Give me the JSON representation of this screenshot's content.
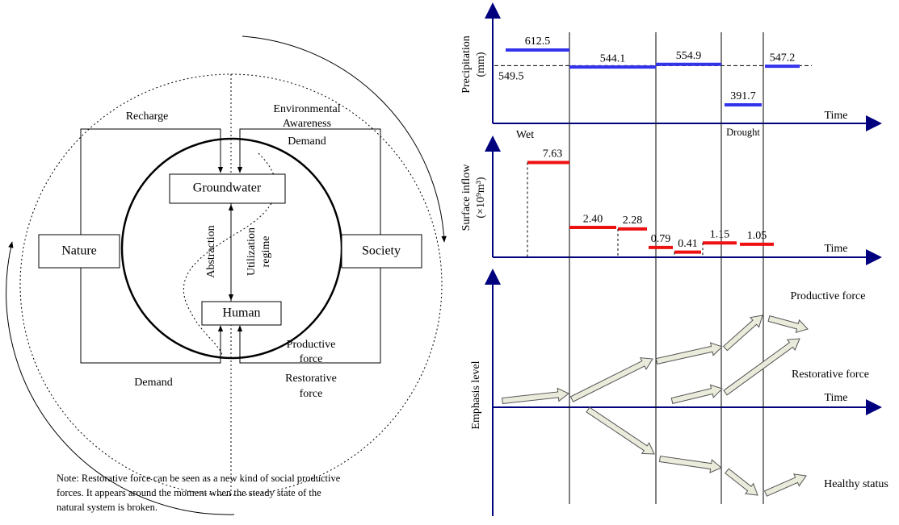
{
  "left": {
    "recharge": "Recharge",
    "awareness": [
      "Environmental",
      "Awareness"
    ],
    "demand_top": "Demand",
    "groundwater": "Groundwater",
    "nature": "Nature",
    "society": "Society",
    "abstraction": "Abstraction",
    "utilization": [
      "Utilization",
      "regime"
    ],
    "human": "Human",
    "productive": [
      "Productive",
      "force"
    ],
    "demand_bottom": "Demand",
    "restorative": [
      "Restorative",
      "force"
    ],
    "note": [
      "Note: Restorative force can be seen as a new kind of social productive",
      "forces. It appears around the moment when the steady state of the",
      "natural system is broken."
    ]
  },
  "precipitation": {
    "ylabel": [
      "Precipitation",
      "(mm)"
    ],
    "xlabel": "Time",
    "wet": "Wet",
    "drought": "Drought",
    "mean": 549.5,
    "values": [
      612.5,
      544.1,
      554.9,
      391.7,
      547.2
    ]
  },
  "inflow": {
    "ylabel": [
      "Surface inflow",
      "(×10⁹m³)"
    ],
    "xlabel": "Time",
    "values": [
      7.63,
      2.4,
      2.28,
      0.79,
      0.41,
      1.15,
      1.05
    ],
    "value_labels": [
      "7.63",
      "2.40",
      "2.28",
      "0.79",
      "0.41",
      "1.15",
      "1.05"
    ]
  },
  "emphasis": {
    "ylabel": "Emphasis level",
    "xlabel": "Time",
    "productive": "Productive force",
    "restorative": "Restorative force",
    "healthy": "Healthy status"
  }
}
